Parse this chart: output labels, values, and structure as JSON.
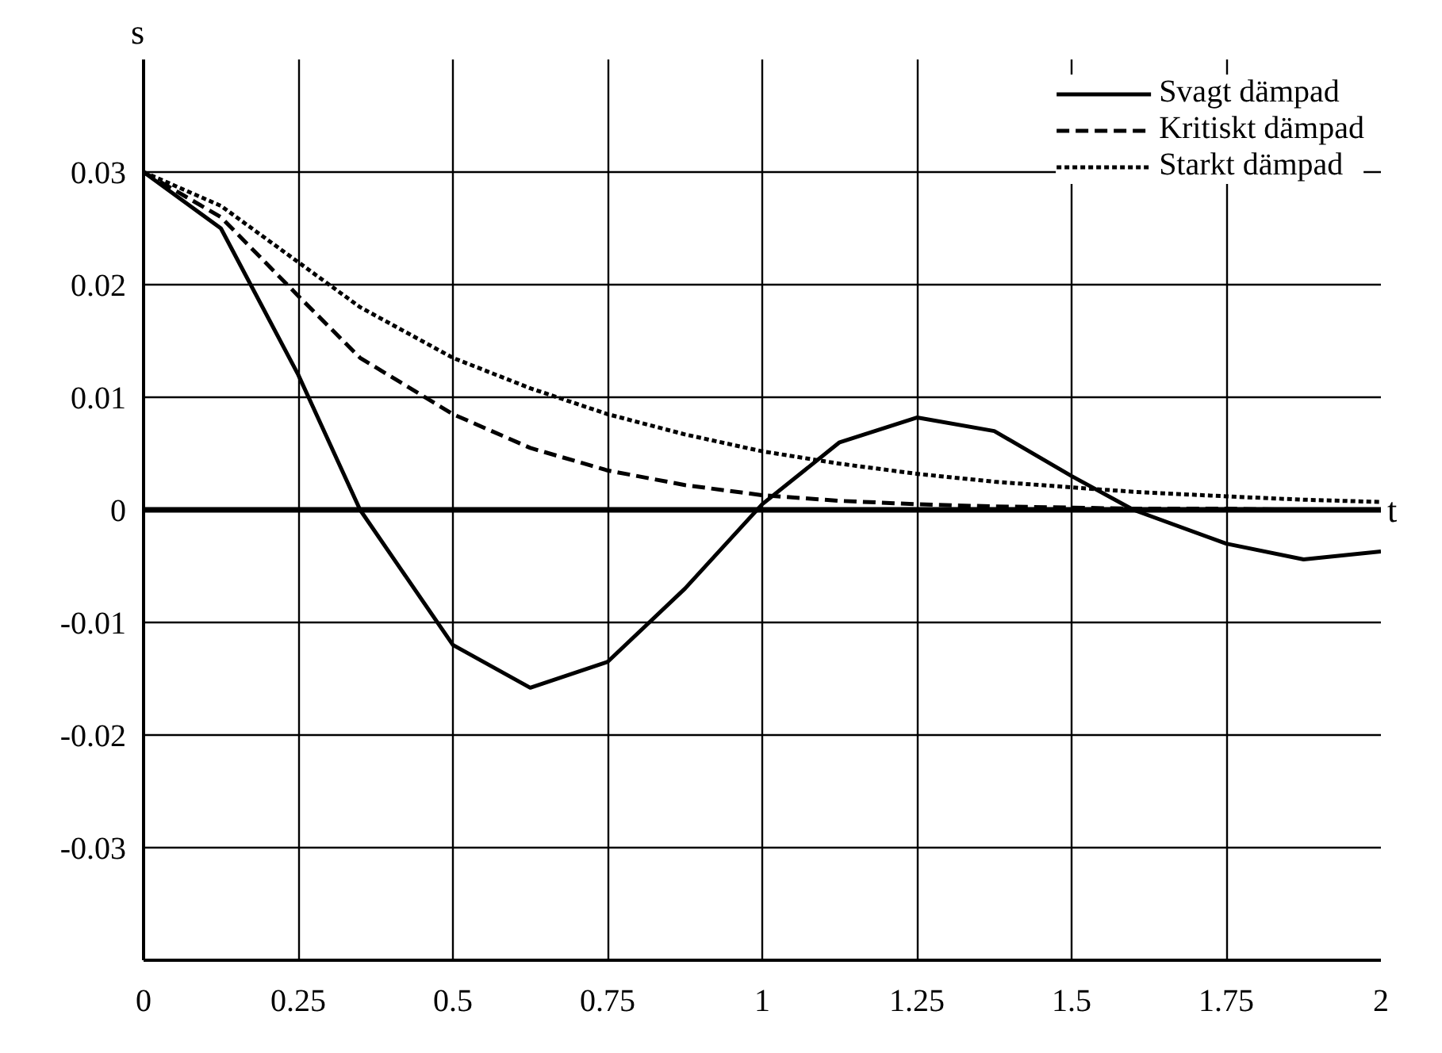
{
  "chart_data": {
    "type": "line",
    "xlabel": "t",
    "ylabel": "s",
    "x": [
      0,
      0.125,
      0.25,
      0.35,
      0.5,
      0.625,
      0.75,
      0.875,
      1.0,
      1.125,
      1.25,
      1.375,
      1.5,
      1.6,
      1.75,
      1.875,
      2.0
    ],
    "series": [
      {
        "name": "Svagt dämpad",
        "color": "#000000",
        "line_style": "solid",
        "values": [
          0.03,
          0.025,
          0.012,
          0.0,
          -0.012,
          -0.0158,
          -0.0135,
          -0.007,
          0.0005,
          0.006,
          0.0082,
          0.007,
          0.003,
          0.0,
          -0.003,
          -0.0044,
          -0.0037
        ]
      },
      {
        "name": "Kritiskt dämpad",
        "color": "#000000",
        "line_style": "dashed",
        "values": [
          0.03,
          0.026,
          0.019,
          0.0135,
          0.0085,
          0.0055,
          0.0035,
          0.0022,
          0.0013,
          0.0008,
          0.0005,
          0.0003,
          0.0002,
          0.0001,
          0.0001,
          0.0,
          0.0
        ]
      },
      {
        "name": "Starkt dämpad",
        "color": "#000000",
        "line_style": "dotted",
        "values": [
          0.03,
          0.027,
          0.022,
          0.018,
          0.0135,
          0.0108,
          0.0085,
          0.0067,
          0.0052,
          0.0041,
          0.0032,
          0.0025,
          0.002,
          0.0016,
          0.0012,
          0.0009,
          0.0007
        ]
      }
    ],
    "xlim": [
      0,
      2
    ],
    "ylim": [
      -0.04,
      0.04
    ],
    "xticks": [
      0,
      0.25,
      0.5,
      0.75,
      1,
      1.25,
      1.5,
      1.75,
      2
    ],
    "yticks": [
      {
        "value": -0.04,
        "label": null
      },
      -0.03,
      -0.02,
      -0.01,
      0,
      0.01,
      0.02,
      0.03
    ],
    "ref_lines": [
      {
        "axis": "y",
        "value": 0,
        "label": null,
        "color": "#000000"
      }
    ],
    "grid": true,
    "legend": "top right",
    "marker": "none"
  }
}
